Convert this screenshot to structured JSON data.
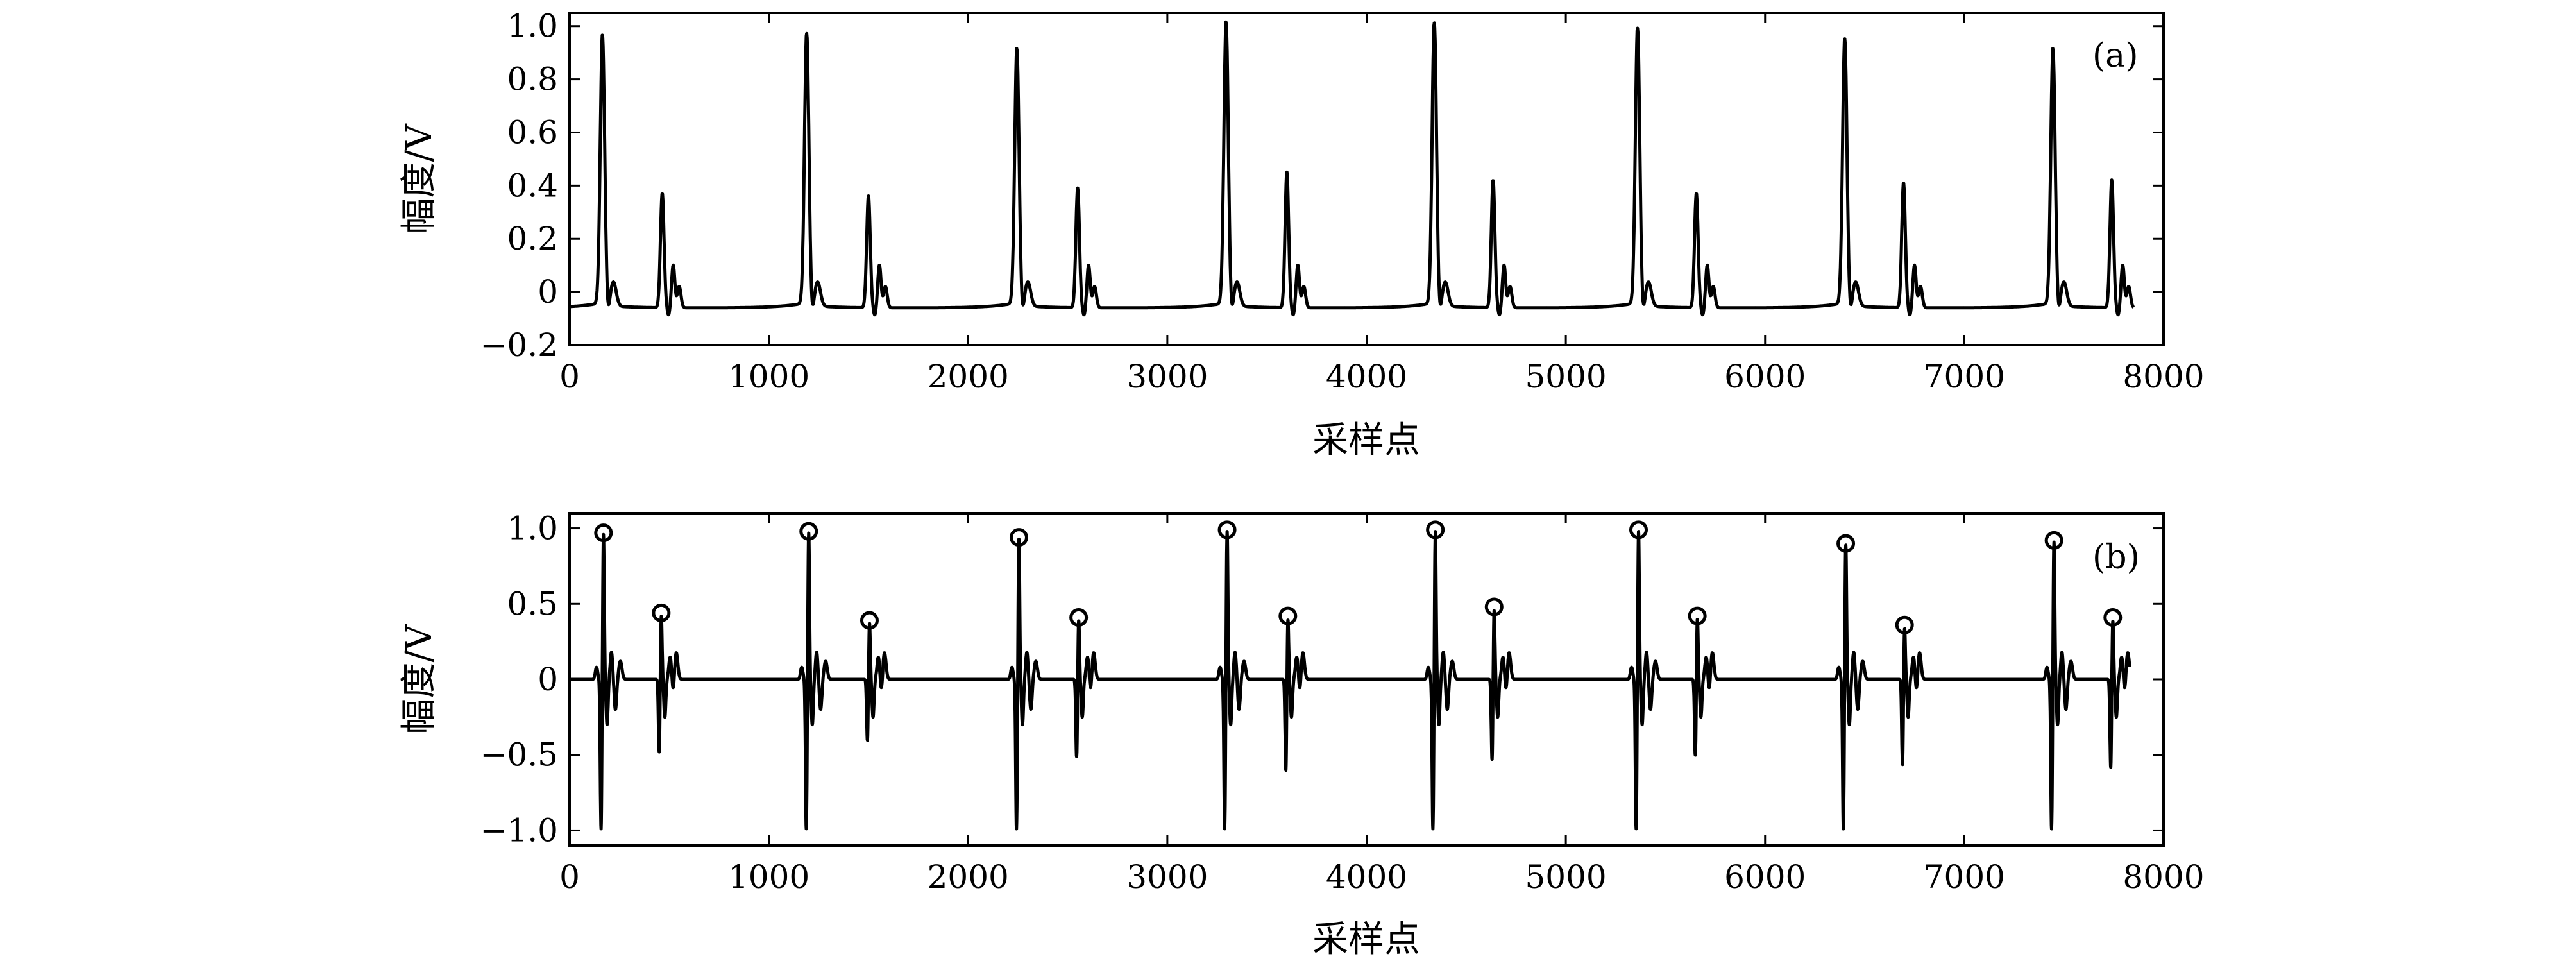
{
  "figure": {
    "panels": [
      {
        "id": "a",
        "panel_label": "(a)",
        "xlabel": "采样点",
        "ylabel": "幅度/V"
      },
      {
        "id": "b",
        "panel_label": "(b)",
        "xlabel": "采样点",
        "ylabel": "幅度/V"
      }
    ]
  },
  "chart_data": [
    {
      "type": "line",
      "panel": "(a)",
      "title": "",
      "xlabel": "采样点",
      "ylabel": "幅度/V",
      "xlim": [
        0,
        8000
      ],
      "ylim": [
        -0.2,
        1.05
      ],
      "xticks": [
        0,
        1000,
        2000,
        3000,
        4000,
        5000,
        6000,
        7000,
        8000
      ],
      "xtick_labels": [
        "0",
        "1000",
        "2000",
        "3000",
        "4000",
        "5000",
        "6000",
        "7000",
        "8000"
      ],
      "yticks": [
        -0.2,
        0,
        0.2,
        0.4,
        0.6,
        0.8,
        1.0
      ],
      "ytick_labels": [
        "−0.2",
        "0",
        "0.2",
        "0.4",
        "0.6",
        "0.8",
        "1.0"
      ],
      "grid": false,
      "line_color": "#000000",
      "baseline": -0.06,
      "x_end": 7850,
      "beats": [
        {
          "r_x": 165,
          "r_amp": 0.95,
          "t_x": 465,
          "t_amp": 0.37
        },
        {
          "r_x": 1190,
          "r_amp": 0.96,
          "t_x": 1500,
          "t_amp": 0.36
        },
        {
          "r_x": 2245,
          "r_amp": 0.9,
          "t_x": 2550,
          "t_amp": 0.39
        },
        {
          "r_x": 3295,
          "r_amp": 1.0,
          "t_x": 3600,
          "t_amp": 0.45
        },
        {
          "r_x": 4340,
          "r_amp": 1.0,
          "t_x": 4635,
          "t_amp": 0.42
        },
        {
          "r_x": 5360,
          "r_amp": 0.98,
          "t_x": 5655,
          "t_amp": 0.37
        },
        {
          "r_x": 6400,
          "r_amp": 0.94,
          "t_x": 6695,
          "t_amp": 0.41
        },
        {
          "r_x": 7445,
          "r_amp": 0.9,
          "t_x": 7740,
          "t_amp": 0.42
        }
      ]
    },
    {
      "type": "line",
      "panel": "(b)",
      "title": "",
      "xlabel": "采样点",
      "ylabel": "幅度/V",
      "xlim": [
        0,
        8000
      ],
      "ylim": [
        -1.1,
        1.1
      ],
      "xticks": [
        0,
        1000,
        2000,
        3000,
        4000,
        5000,
        6000,
        7000,
        8000
      ],
      "xtick_labels": [
        "0",
        "1000",
        "2000",
        "3000",
        "4000",
        "5000",
        "6000",
        "7000",
        "8000"
      ],
      "yticks": [
        -1.0,
        -0.5,
        0,
        0.5,
        1.0
      ],
      "ytick_labels": [
        "−1.0",
        "−0.5",
        "0",
        "0.5",
        "1.0"
      ],
      "grid": false,
      "line_color": "#000000",
      "x_start": 0,
      "x_end": 7830,
      "marker": "circle",
      "beats": [
        {
          "r_x": 170,
          "r_peak": 0.97,
          "r_trough": -1.0,
          "t_x": 460,
          "t_peak": 0.44,
          "t_trough": -0.5
        },
        {
          "r_x": 1200,
          "r_peak": 0.98,
          "r_trough": -1.0,
          "t_x": 1505,
          "t_peak": 0.39,
          "t_trough": -0.42
        },
        {
          "r_x": 2255,
          "r_peak": 0.94,
          "r_trough": -1.0,
          "t_x": 2555,
          "t_peak": 0.41,
          "t_trough": -0.53
        },
        {
          "r_x": 3300,
          "r_peak": 0.99,
          "r_trough": -1.0,
          "t_x": 3605,
          "t_peak": 0.42,
          "t_trough": -0.62
        },
        {
          "r_x": 4345,
          "r_peak": 0.99,
          "r_trough": -1.0,
          "t_x": 4640,
          "t_peak": 0.48,
          "t_trough": -0.55
        },
        {
          "r_x": 5365,
          "r_peak": 0.99,
          "r_trough": -1.0,
          "t_x": 5660,
          "t_peak": 0.42,
          "t_trough": -0.52
        },
        {
          "r_x": 6405,
          "r_peak": 0.9,
          "r_trough": -1.0,
          "t_x": 6700,
          "t_peak": 0.36,
          "t_trough": -0.58
        },
        {
          "r_x": 7450,
          "r_peak": 0.92,
          "r_trough": -1.0,
          "t_x": 7745,
          "t_peak": 0.41,
          "t_trough": -0.6
        }
      ]
    }
  ]
}
